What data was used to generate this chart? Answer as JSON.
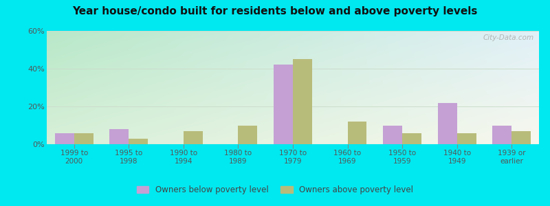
{
  "title": "Year house/condo built for residents below and above poverty levels",
  "categories": [
    "1999 to\n2000",
    "1995 to\n1998",
    "1990 to\n1994",
    "1980 to\n1989",
    "1970 to\n1979",
    "1960 to\n1969",
    "1950 to\n1959",
    "1940 to\n1949",
    "1939 or\nearlier"
  ],
  "below_poverty": [
    6,
    8,
    0,
    0,
    42,
    0,
    10,
    22,
    10
  ],
  "above_poverty": [
    6,
    3,
    7,
    10,
    45,
    12,
    6,
    6,
    7
  ],
  "below_color": "#c4a0d4",
  "above_color": "#b8bc7a",
  "ylim": [
    0,
    60
  ],
  "yticks": [
    0,
    20,
    40,
    60
  ],
  "ytick_labels": [
    "0%",
    "20%",
    "40%",
    "60%"
  ],
  "bar_width": 0.35,
  "bg_color_topleft": "#b8e8c8",
  "bg_color_topright": "#e0f0f8",
  "bg_color_bottomleft": "#d8f0d8",
  "bg_color_bottomright": "#f8f8ee",
  "outer_background": "#00e8f0",
  "legend_below_label": "Owners below poverty level",
  "legend_above_label": "Owners above poverty level",
  "watermark": "City-Data.com",
  "grid_color": "#ccddcc",
  "tick_color": "#888888",
  "text_color": "#555555"
}
